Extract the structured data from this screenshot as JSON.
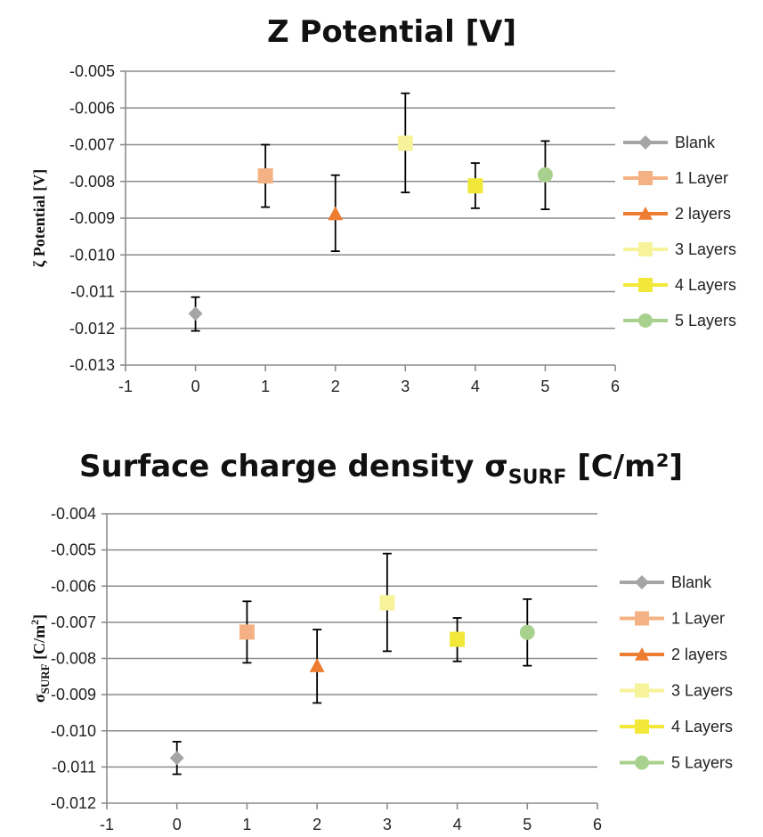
{
  "chart_data": [
    {
      "type": "scatter",
      "title": "Z Potential [V]",
      "title_sub": "",
      "title_tail": "",
      "ylabel": "ζ Potential [V]",
      "ylabel_sub": "",
      "ylabel_tail": "",
      "ylabel_sup": "",
      "ylabel_end": "",
      "xlim": [
        -1,
        6
      ],
      "ylim": [
        -0.013,
        -0.005
      ],
      "ystep": 0.001,
      "grid": "horizontal",
      "legend_position": "right",
      "x_ticks": [
        "-1",
        "0",
        "1",
        "2",
        "3",
        "4",
        "5",
        "6"
      ],
      "y_ticks": [
        "-0.005",
        "-0.006",
        "-0.007",
        "-0.008",
        "-0.009",
        "-0.010",
        "-0.011",
        "-0.012",
        "-0.013"
      ],
      "series": [
        {
          "name": "Blank",
          "x": 0,
          "y": -0.0116,
          "err_low": -0.01207,
          "err_high": -0.01115,
          "marker": "diamond",
          "color": "#a5a5a5"
        },
        {
          "name": "1 Layer",
          "x": 1,
          "y": -0.00785,
          "err_low": -0.0087,
          "err_high": -0.007,
          "marker": "square",
          "color": "#f4b183"
        },
        {
          "name": "2 layers",
          "x": 2,
          "y": -0.00888,
          "err_low": -0.0099,
          "err_high": -0.00783,
          "marker": "triangle",
          "color": "#ed7d31"
        },
        {
          "name": "3 Layers",
          "x": 3,
          "y": -0.00696,
          "err_low": -0.0083,
          "err_high": -0.0056,
          "marker": "square",
          "color": "#f7f39a"
        },
        {
          "name": "4 Layers",
          "x": 4,
          "y": -0.00812,
          "err_low": -0.00873,
          "err_high": -0.0075,
          "marker": "square",
          "color": "#f2e83a"
        },
        {
          "name": "5 Layers",
          "x": 5,
          "y": -0.00782,
          "err_low": -0.00876,
          "err_high": -0.0069,
          "marker": "circle",
          "color": "#a9d18e"
        }
      ]
    },
    {
      "type": "scatter",
      "title": "Surface charge density σ",
      "title_sub": "SURF",
      "title_tail": " [C/m²]",
      "ylabel": "σ",
      "ylabel_sub": "SURF",
      "ylabel_tail": " [C/m",
      "ylabel_sup": "2",
      "ylabel_end": "]",
      "xlim": [
        -1,
        6
      ],
      "ylim": [
        -0.012,
        -0.004
      ],
      "ystep": 0.001,
      "grid": "horizontal",
      "legend_position": "right",
      "x_ticks": [
        "-1",
        "0",
        "1",
        "2",
        "3",
        "4",
        "5",
        "6"
      ],
      "y_ticks": [
        "-0.004",
        "-0.005",
        "-0.006",
        "-0.007",
        "-0.008",
        "-0.009",
        "-0.010",
        "-0.011",
        "-0.012"
      ],
      "series": [
        {
          "name": "Blank",
          "x": 0,
          "y": -0.01075,
          "err_low": -0.0112,
          "err_high": -0.0103,
          "marker": "diamond",
          "color": "#a5a5a5"
        },
        {
          "name": "1 Layer",
          "x": 1,
          "y": -0.00727,
          "err_low": -0.00812,
          "err_high": -0.00642,
          "marker": "square",
          "color": "#f4b183"
        },
        {
          "name": "2 layers",
          "x": 2,
          "y": -0.0082,
          "err_low": -0.00923,
          "err_high": -0.0072,
          "marker": "triangle",
          "color": "#ed7d31"
        },
        {
          "name": "3 Layers",
          "x": 3,
          "y": -0.00646,
          "err_low": -0.0078,
          "err_high": -0.0051,
          "marker": "square",
          "color": "#f7f39a"
        },
        {
          "name": "4 Layers",
          "x": 4,
          "y": -0.00747,
          "err_low": -0.00808,
          "err_high": -0.00688,
          "marker": "square",
          "color": "#f2e83a"
        },
        {
          "name": "5 Layers",
          "x": 5,
          "y": -0.00728,
          "err_low": -0.0082,
          "err_high": -0.00636,
          "marker": "circle",
          "color": "#a9d18e"
        }
      ]
    }
  ]
}
